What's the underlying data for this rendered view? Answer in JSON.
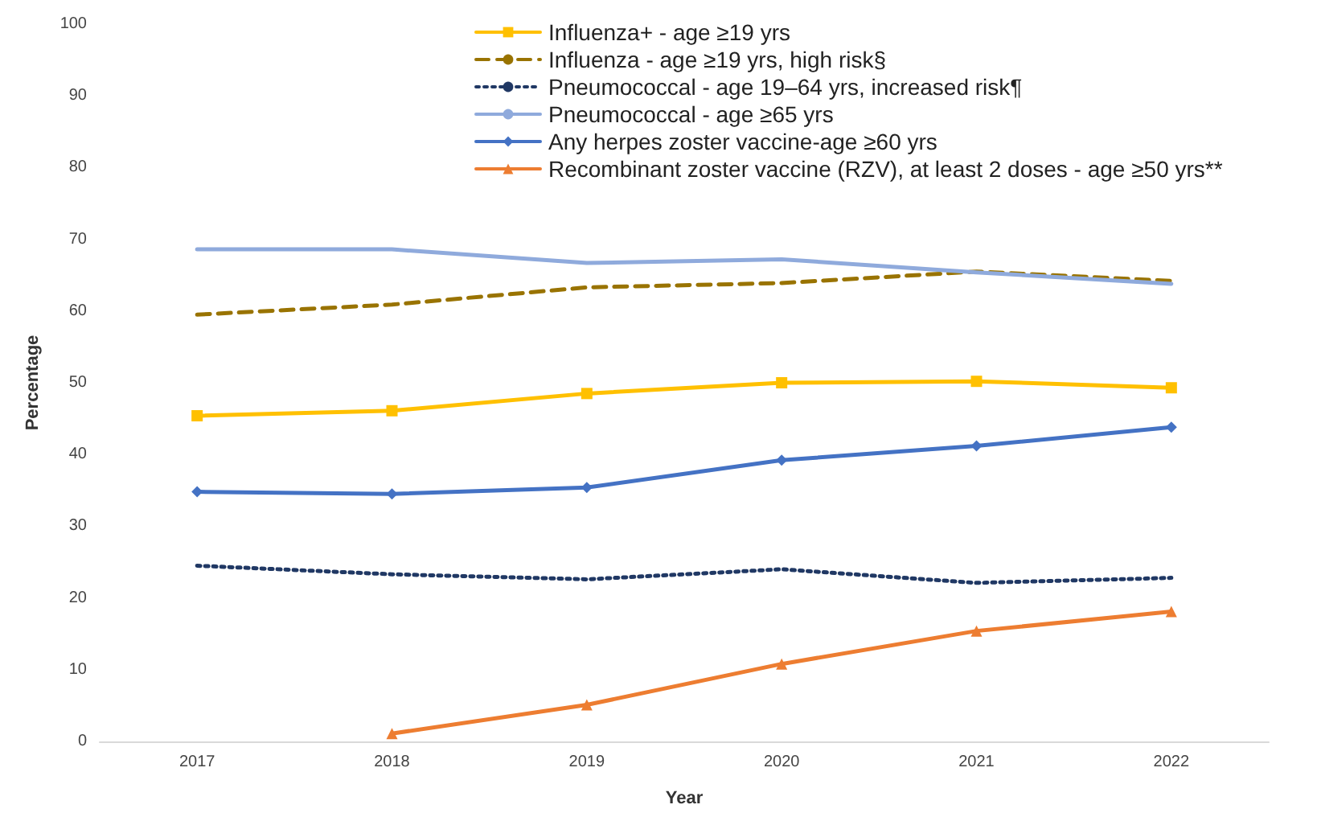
{
  "chart_data": {
    "type": "line",
    "xlabel": "Year",
    "ylabel": "Percentage",
    "categories": [
      "2017",
      "2018",
      "2019",
      "2020",
      "2021",
      "2022"
    ],
    "series": [
      {
        "name": "Influenza+ - age ≥19 yrs",
        "color": "#ffc000",
        "marker": "square",
        "line_style": "solid",
        "values": [
          45.4,
          46.1,
          48.5,
          50.0,
          50.2,
          49.3
        ]
      },
      {
        "name": "Influenza - age ≥19 yrs, high risk§",
        "color": "#997300",
        "marker": "none",
        "line_style": "dashed",
        "values": [
          59.5,
          60.9,
          63.3,
          63.9,
          65.5,
          64.2
        ]
      },
      {
        "name": "Pneumococcal - age 19–64 yrs, increased risk¶",
        "color": "#203864",
        "marker": "none",
        "line_style": "dotted",
        "values": [
          24.5,
          23.3,
          22.6,
          24.0,
          22.1,
          22.8
        ]
      },
      {
        "name": "Pneumococcal - age ≥65 yrs",
        "color": "#8faadc",
        "marker": "none",
        "line_style": "solid",
        "values": [
          68.6,
          68.6,
          66.7,
          67.2,
          65.4,
          63.8
        ]
      },
      {
        "name": "Any herpes zoster vaccine-age ≥60 yrs",
        "color": "#4472c4",
        "marker": "diamond",
        "line_style": "solid",
        "values": [
          34.8,
          34.5,
          35.4,
          39.2,
          41.2,
          43.8
        ]
      },
      {
        "name": "Recombinant zoster vaccine (RZV), at least 2 doses - age ≥50 yrs**",
        "color": "#ed7d31",
        "marker": "triangle",
        "line_style": "solid",
        "values": [
          null,
          1.1,
          5.1,
          10.8,
          15.4,
          18.1
        ]
      }
    ],
    "ylim": [
      0,
      100
    ],
    "yticks": [
      0,
      10,
      20,
      30,
      40,
      50,
      60,
      70,
      80,
      90,
      100
    ],
    "grid": false,
    "legend": "top"
  }
}
